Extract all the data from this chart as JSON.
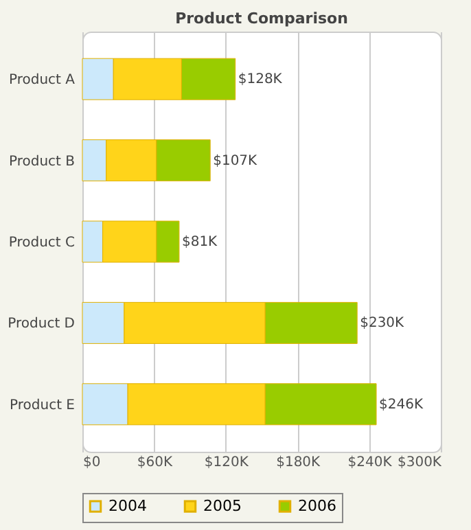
{
  "chart_data": {
    "type": "bar",
    "orientation": "horizontal",
    "stacked": true,
    "title": "Product Comparison",
    "categories": [
      "Product A",
      "Product B",
      "Product C",
      "Product D",
      "Product E"
    ],
    "series": [
      {
        "name": "2004",
        "color": "#cce9fb",
        "values": [
          26,
          20,
          17,
          35,
          38
        ]
      },
      {
        "name": "2005",
        "color": "#ffd41a",
        "values": [
          57,
          42,
          45,
          118,
          115
        ]
      },
      {
        "name": "2006",
        "color": "#99cc00",
        "values": [
          45,
          45,
          19,
          77,
          93
        ]
      }
    ],
    "totals": [
      "$128K",
      "$107K",
      "$81K",
      "$230K",
      "$246K"
    ],
    "xlim": [
      0,
      300
    ],
    "xticks": [
      {
        "value": 0,
        "label": "$0"
      },
      {
        "value": 60,
        "label": "$60K"
      },
      {
        "value": 120,
        "label": "$120K"
      },
      {
        "value": 180,
        "label": "$180K"
      },
      {
        "value": 240,
        "label": "$240K"
      },
      {
        "value": 300,
        "label": "$300K"
      }
    ],
    "grid": "x",
    "legend": "bottom"
  }
}
